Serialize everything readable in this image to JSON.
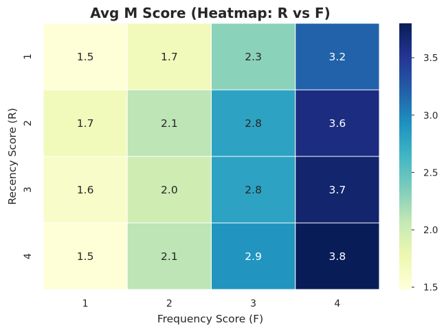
{
  "chart_data": {
    "type": "heatmap",
    "title": "Avg M Score (Heatmap: R vs F)",
    "xlabel": "Frequency Score (F)",
    "ylabel": "Recency Score (R)",
    "x_categories": [
      "1",
      "2",
      "3",
      "4"
    ],
    "y_categories": [
      "1",
      "2",
      "3",
      "4"
    ],
    "values": [
      [
        1.5,
        1.7,
        2.3,
        3.2
      ],
      [
        1.7,
        2.1,
        2.8,
        3.6
      ],
      [
        1.6,
        2.0,
        2.8,
        3.7
      ],
      [
        1.5,
        2.1,
        2.9,
        3.8
      ]
    ],
    "value_labels": [
      [
        "1.5",
        "1.7",
        "2.3",
        "3.2"
      ],
      [
        "1.7",
        "2.1",
        "2.8",
        "3.6"
      ],
      [
        "1.6",
        "2.0",
        "2.8",
        "3.7"
      ],
      [
        "1.5",
        "2.1",
        "2.9",
        "3.8"
      ]
    ],
    "colormap": "YlGnBu",
    "colorbar": {
      "range": [
        1.48,
        3.8
      ],
      "ticks": [
        1.5,
        2.0,
        2.5,
        3.0,
        3.5
      ],
      "tick_labels": [
        "1.5",
        "2.0",
        "2.5",
        "3.0",
        "3.5"
      ]
    },
    "grid": false
  }
}
